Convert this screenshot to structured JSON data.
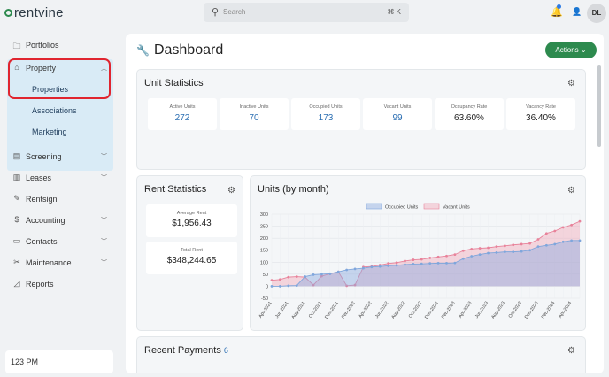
{
  "app": {
    "brand": "rentvine"
  },
  "header": {
    "search_placeholder": "Search",
    "search_shortcut": "⌘ K",
    "avatar_initials": "DL"
  },
  "sidebar": {
    "items": [
      {
        "label": "Portfolios",
        "icon": "folder-icon",
        "chevron": false
      },
      {
        "label": "Property",
        "icon": "building-icon",
        "chevron": true,
        "expanded": true
      },
      {
        "label": "Screening",
        "icon": "document-icon",
        "chevron": true
      },
      {
        "label": "Leases",
        "icon": "file-icon",
        "chevron": true
      },
      {
        "label": "Rentsign",
        "icon": "pen-icon",
        "chevron": false
      },
      {
        "label": "Accounting",
        "icon": "dollar-icon",
        "chevron": true
      },
      {
        "label": "Contacts",
        "icon": "book-icon",
        "chevron": true
      },
      {
        "label": "Maintenance",
        "icon": "wrench-icon",
        "chevron": true
      },
      {
        "label": "Reports",
        "icon": "chart-icon",
        "chevron": false
      }
    ],
    "property_sub": [
      "Properties",
      "Associations",
      "Marketing"
    ],
    "time": "123 PM"
  },
  "dashboard": {
    "title": "Dashboard",
    "actions_label": "Actions"
  },
  "unit_statistics": {
    "title": "Unit Statistics",
    "stats": [
      {
        "label": "Active Units",
        "value": "272"
      },
      {
        "label": "Inactive Units",
        "value": "70"
      },
      {
        "label": "Occupied Units",
        "value": "173"
      },
      {
        "label": "Vacant Units",
        "value": "99"
      },
      {
        "label": "Occupancy Rate",
        "value": "63.60%"
      },
      {
        "label": "Vacancy Rate",
        "value": "36.40%"
      }
    ]
  },
  "rent_statistics": {
    "title": "Rent Statistics",
    "average_label": "Average Rent",
    "average_value": "$1,956.43",
    "total_label": "Total Rent",
    "total_value": "$348,244.65"
  },
  "recent_payments": {
    "title": "Recent Payments",
    "count": "6"
  },
  "colors": {
    "brand_green": "#2d8a4e",
    "link_blue": "#2c6fb3",
    "occupied": "#7fa6dc",
    "vacant": "#e8829a"
  },
  "chart_data": {
    "type": "area",
    "title": "Units (by month)",
    "legend": [
      "Occupied Units",
      "Vacant Units"
    ],
    "legend_position": "top",
    "grid": true,
    "ylim": [
      -50,
      300
    ],
    "yticks": [
      -50,
      0,
      50,
      100,
      150,
      200,
      250,
      300
    ],
    "xtick_labels": [
      "Apr-2021",
      "Jun-2021",
      "Aug-2021",
      "Oct-2021",
      "Dec-2021",
      "Feb-2022",
      "Apr-2022",
      "Jun-2022",
      "Aug-2022",
      "Oct-2022",
      "Dec-2022",
      "Feb-2023",
      "Apr-2023",
      "Jun-2023",
      "Aug-2023",
      "Oct-2023",
      "Dec-2023",
      "Feb-2024",
      "Apr-2024"
    ],
    "x": [
      "Apr-2021",
      "May-2021",
      "Jun-2021",
      "Jul-2021",
      "Aug-2021",
      "Sep-2021",
      "Oct-2021",
      "Nov-2021",
      "Dec-2021",
      "Jan-2022",
      "Feb-2022",
      "Mar-2022",
      "Apr-2022",
      "May-2022",
      "Jun-2022",
      "Jul-2022",
      "Aug-2022",
      "Sep-2022",
      "Oct-2022",
      "Nov-2022",
      "Dec-2022",
      "Jan-2023",
      "Feb-2023",
      "Mar-2023",
      "Apr-2023",
      "May-2023",
      "Jun-2023",
      "Jul-2023",
      "Aug-2023",
      "Sep-2023",
      "Oct-2023",
      "Nov-2023",
      "Dec-2023",
      "Jan-2024",
      "Feb-2024",
      "Mar-2024",
      "Apr-2024",
      "May-2024"
    ],
    "series": [
      {
        "name": "Occupied Units",
        "values": [
          0,
          0,
          2,
          3,
          40,
          48,
          50,
          52,
          60,
          68,
          72,
          75,
          80,
          82,
          85,
          87,
          90,
          92,
          93,
          95,
          96,
          96,
          97,
          115,
          125,
          132,
          138,
          140,
          143,
          143,
          145,
          150,
          165,
          170,
          175,
          185,
          190,
          190
        ]
      },
      {
        "name": "Vacant Units",
        "values": [
          25,
          28,
          38,
          40,
          38,
          5,
          42,
          52,
          60,
          2,
          5,
          80,
          82,
          88,
          95,
          98,
          105,
          110,
          112,
          118,
          122,
          126,
          132,
          148,
          155,
          158,
          160,
          165,
          168,
          172,
          175,
          178,
          195,
          220,
          230,
          245,
          255,
          270
        ]
      }
    ]
  }
}
